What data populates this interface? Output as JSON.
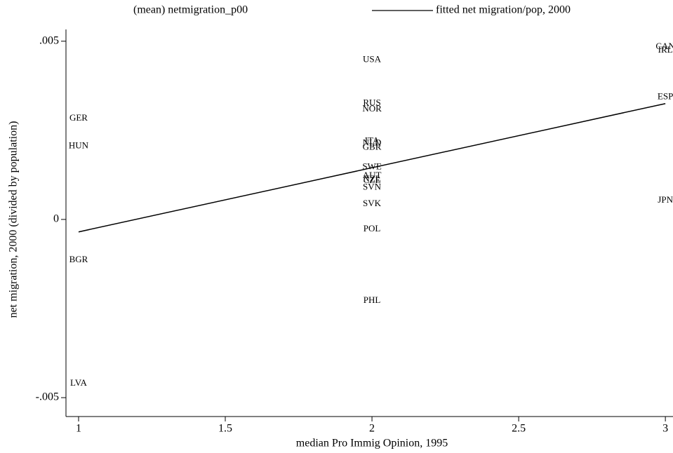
{
  "chart_data": {
    "type": "scatter",
    "xlabel": "median Pro Immig Opinion, 1995",
    "ylabel": "net migration, 2000 (divided by population)",
    "xlim": [
      0.957,
      3.026
    ],
    "ylim": [
      -0.00553,
      0.00533
    ],
    "xticks": [
      1,
      1.5,
      2,
      2.5,
      3
    ],
    "yticks": [
      {
        "value": 0.005,
        "label": ".005"
      },
      0,
      {
        "value": -0.005,
        "label": "-.005"
      }
    ],
    "grid": false,
    "legend": "top",
    "series": [
      {
        "name": "(mean) netmigration_p00",
        "type": "scatter",
        "color": "#000000",
        "labels": [
          "GER",
          "HUN",
          "BGR",
          "LVA",
          "USA",
          "RUS",
          "NOR",
          "ITA",
          "NLD",
          "GBR",
          "SWE",
          "AUT",
          "NZL",
          "CZE",
          "SVN",
          "SVK",
          "POL",
          "PHL",
          "CAN",
          "IRL",
          "ESP",
          "JPN"
        ],
        "x": [
          1,
          1,
          1,
          1,
          2,
          2,
          2,
          2,
          2,
          2,
          2,
          2,
          2,
          2,
          2,
          2,
          2,
          2,
          3,
          3,
          3,
          3
        ],
        "values": [
          0.00283,
          0.00205,
          -0.00114,
          -0.00461,
          0.00447,
          0.00325,
          0.00309,
          0.00219,
          0.00213,
          0.00201,
          0.00146,
          0.00122,
          0.00112,
          0.00108,
          0.00089,
          0.00043,
          -0.00028,
          -0.00228,
          0.00484,
          0.00474,
          0.00343,
          0.00053
        ]
      },
      {
        "name": "fitted net migration/pop, 2000",
        "type": "line",
        "color": "#000000",
        "x": [
          1,
          3
        ],
        "values": [
          -0.00035,
          0.00325
        ]
      }
    ]
  }
}
